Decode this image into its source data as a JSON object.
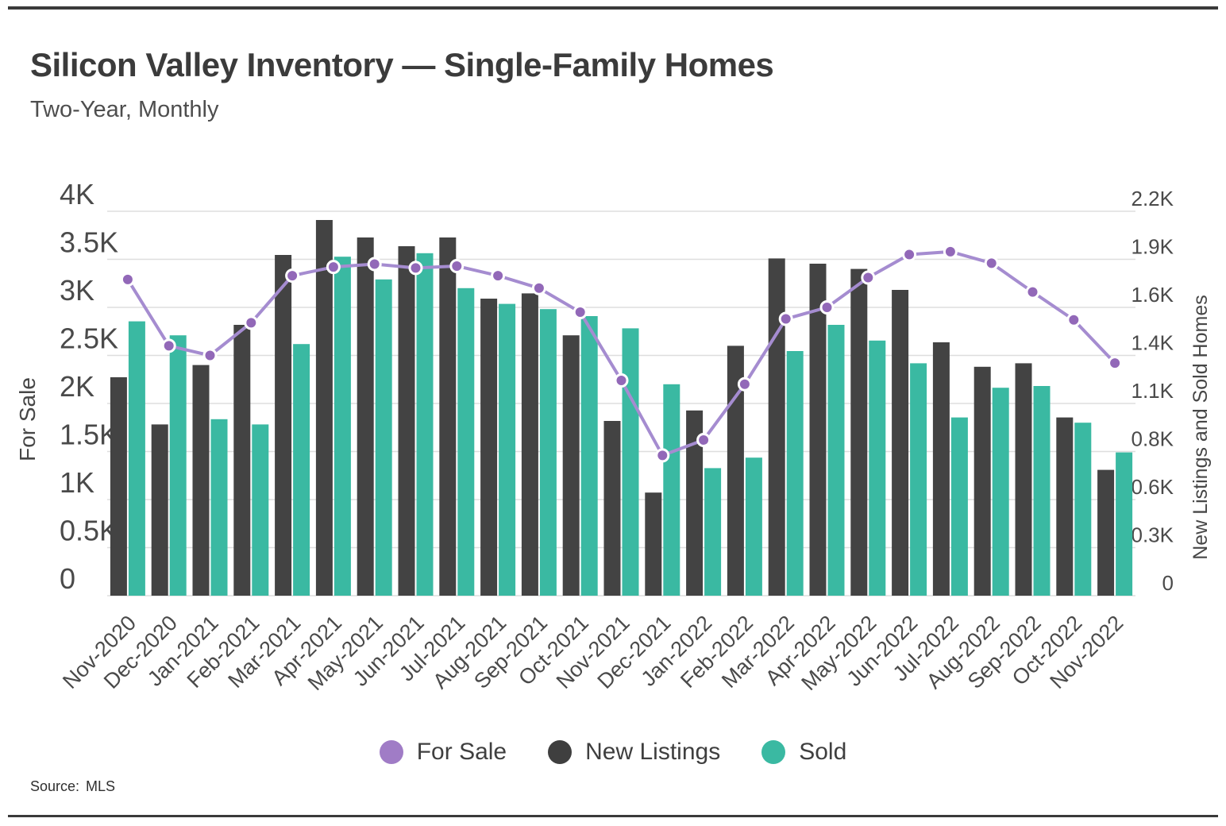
{
  "header": {
    "title": "Silicon Valley Inventory — Single-Family Homes",
    "subtitle": "Two-Year, Monthly"
  },
  "source": {
    "label": "Source:",
    "value": "MLS"
  },
  "colors": {
    "accent_purple_line": "#a58cd0",
    "accent_purple_marker": "#9268b8",
    "marker_ring": "#ffffff",
    "dark_bar": "#434343",
    "teal_bar": "#3ab9a2",
    "grid": "#dedede",
    "axis_text": "#474747",
    "tick_text": "#4a4a4a"
  },
  "legend": [
    {
      "label": "For Sale",
      "color": "#a07cc6"
    },
    {
      "label": "New Listings",
      "color": "#3f3f3f"
    },
    {
      "label": "Sold",
      "color": "#3ab9a2"
    }
  ],
  "chart_data": {
    "type": "composite",
    "grid": true,
    "legend_position": "bottom",
    "categories": [
      "Nov-2020",
      "Dec-2020",
      "Jan-2021",
      "Feb-2021",
      "Mar-2021",
      "Apr-2021",
      "May-2021",
      "Jun-2021",
      "Jul-2021",
      "Aug-2021",
      "Sep-2021",
      "Oct-2021",
      "Nov-2021",
      "Dec-2021",
      "Jan-2022",
      "Feb-2022",
      "Mar-2022",
      "Apr-2022",
      "May-2022",
      "Jun-2022",
      "Jul-2022",
      "Aug-2022",
      "Sep-2022",
      "Oct-2022",
      "Nov-2022"
    ],
    "series": [
      {
        "name": "For Sale",
        "type": "line",
        "axis": "left",
        "color": "#a58cd0",
        "marker_color": "#9268b8",
        "values": [
          3290,
          2600,
          2500,
          2840,
          3330,
          3420,
          3450,
          3410,
          3430,
          3330,
          3200,
          2950,
          2240,
          1460,
          1620,
          2200,
          2880,
          3000,
          3310,
          3550,
          3580,
          3460,
          3160,
          2870,
          2420
        ]
      },
      {
        "name": "New Listings",
        "type": "bar",
        "axis": "right",
        "color": "#434343",
        "values": [
          1250,
          980,
          1320,
          1550,
          1950,
          2150,
          2050,
          2000,
          2050,
          1700,
          1730,
          1490,
          1000,
          590,
          1060,
          1430,
          1930,
          1900,
          1870,
          1750,
          1450,
          1310,
          1330,
          1020,
          720
        ]
      },
      {
        "name": "Sold",
        "type": "bar",
        "axis": "right",
        "color": "#3ab9a2",
        "values": [
          1570,
          1490,
          1010,
          980,
          1440,
          1940,
          1810,
          1960,
          1760,
          1670,
          1640,
          1600,
          1530,
          1210,
          730,
          790,
          1400,
          1550,
          1460,
          1330,
          1020,
          1190,
          1200,
          990,
          820
        ]
      }
    ],
    "left_axis": {
      "title": "For Sale",
      "max": 4000,
      "ticks": [
        {
          "value": 0,
          "label": "0"
        },
        {
          "value": 500,
          "label": "0.5K"
        },
        {
          "value": 1000,
          "label": "1K"
        },
        {
          "value": 1500,
          "label": "1.5K"
        },
        {
          "value": 2000,
          "label": "2K"
        },
        {
          "value": 2500,
          "label": "2.5K"
        },
        {
          "value": 3000,
          "label": "3K"
        },
        {
          "value": 3500,
          "label": "3.5K"
        },
        {
          "value": 4000,
          "label": "4K"
        }
      ]
    },
    "right_axis": {
      "title": "New Listings and Sold Homes",
      "max": 2200,
      "ticks": [
        {
          "value": 0,
          "label": "0"
        },
        {
          "value": 275,
          "label": "0.3K"
        },
        {
          "value": 550,
          "label": "0.6K"
        },
        {
          "value": 825,
          "label": "0.8K"
        },
        {
          "value": 1100,
          "label": "1.1K"
        },
        {
          "value": 1375,
          "label": "1.4K"
        },
        {
          "value": 1650,
          "label": "1.6K"
        },
        {
          "value": 1925,
          "label": "1.9K"
        },
        {
          "value": 2200,
          "label": "2.2K"
        }
      ]
    }
  }
}
